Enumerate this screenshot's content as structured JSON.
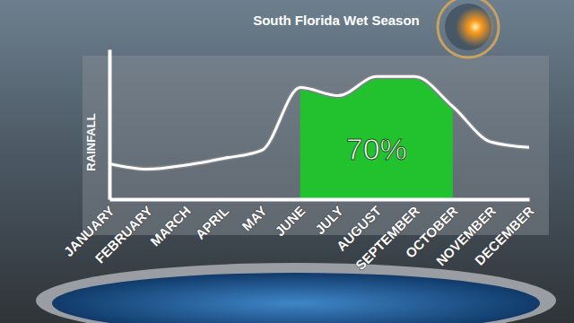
{
  "chart_data": {
    "type": "line",
    "title": "South Florida Wet Season",
    "y_label": "RAINFALL",
    "categories": [
      "JANUARY",
      "FEBRUARY",
      "MARCH",
      "APRIL",
      "MAY",
      "JUNE",
      "JULY",
      "AUGUST",
      "SEPTEMBER",
      "OCTOBER",
      "NOVEMBER",
      "DECEMBER"
    ],
    "values": [
      2.6,
      2.2,
      2.5,
      3.0,
      3.6,
      8.2,
      7.6,
      9.0,
      9.0,
      6.8,
      4.2,
      3.8
    ],
    "ylim": [
      0,
      11
    ],
    "yticks": [],
    "tick_labels": "x",
    "color": "#22c12e",
    "highlight": {
      "from": "JUNE",
      "to": "OCTOBER",
      "value": 70,
      "label": "70%"
    }
  }
}
